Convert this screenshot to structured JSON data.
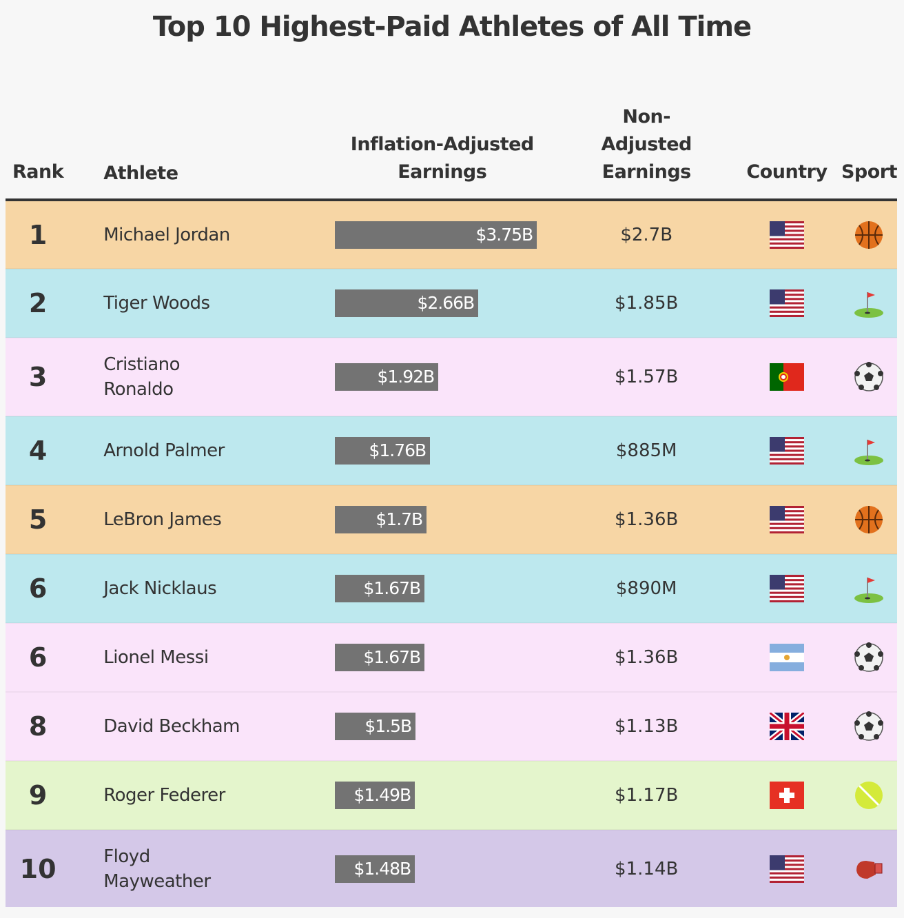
{
  "title": "Top 10 Highest-Paid Athletes of All Time",
  "headers": {
    "rank": "Rank",
    "athlete": "Athlete",
    "inflation": "Inflation-Adjusted Earnings",
    "non": "Non-Adjusted Earnings",
    "country": "Country",
    "sport": "Sport"
  },
  "colors": {
    "basketball": "#f7d6a5",
    "golf": "#bde8ee",
    "soccer": "#fae4fa",
    "tennis": "#e4f5cc",
    "boxing": "#d4c8e8",
    "bar": "#737373"
  },
  "chart_data": {
    "type": "table",
    "title": "Top 10 Highest-Paid Athletes of All Time",
    "bar_column": "Inflation-Adjusted Earnings",
    "bar_unit": "billion USD",
    "rows": [
      {
        "rank": "1",
        "athlete": "Michael Jordan",
        "inflation_value": 3.75,
        "inflation_label": "$3.75B",
        "non_adjusted": "$2.7B",
        "country": "us",
        "sport": "basketball"
      },
      {
        "rank": "2",
        "athlete": "Tiger Woods",
        "inflation_value": 2.66,
        "inflation_label": "$2.66B",
        "non_adjusted": "$1.85B",
        "country": "us",
        "sport": "golf"
      },
      {
        "rank": "3",
        "athlete": "Cristiano Ronaldo",
        "inflation_value": 1.92,
        "inflation_label": "$1.92B",
        "non_adjusted": "$1.57B",
        "country": "pt",
        "sport": "soccer"
      },
      {
        "rank": "4",
        "athlete": "Arnold Palmer",
        "inflation_value": 1.76,
        "inflation_label": "$1.76B",
        "non_adjusted": "$885M",
        "country": "us",
        "sport": "golf"
      },
      {
        "rank": "5",
        "athlete": "LeBron James",
        "inflation_value": 1.7,
        "inflation_label": "$1.7B",
        "non_adjusted": "$1.36B",
        "country": "us",
        "sport": "basketball"
      },
      {
        "rank": "6",
        "athlete": "Jack Nicklaus",
        "inflation_value": 1.67,
        "inflation_label": "$1.67B",
        "non_adjusted": "$890M",
        "country": "us",
        "sport": "golf"
      },
      {
        "rank": "6",
        "athlete": "Lionel Messi",
        "inflation_value": 1.67,
        "inflation_label": "$1.67B",
        "non_adjusted": "$1.36B",
        "country": "ar",
        "sport": "soccer"
      },
      {
        "rank": "8",
        "athlete": "David Beckham",
        "inflation_value": 1.5,
        "inflation_label": "$1.5B",
        "non_adjusted": "$1.13B",
        "country": "gb",
        "sport": "soccer"
      },
      {
        "rank": "9",
        "athlete": "Roger Federer",
        "inflation_value": 1.49,
        "inflation_label": "$1.49B",
        "non_adjusted": "$1.17B",
        "country": "ch",
        "sport": "tennis"
      },
      {
        "rank": "10",
        "athlete": "Floyd Mayweather",
        "inflation_value": 1.48,
        "inflation_label": "$1.48B",
        "non_adjusted": "$1.14B",
        "country": "us",
        "sport": "boxing"
      }
    ]
  }
}
